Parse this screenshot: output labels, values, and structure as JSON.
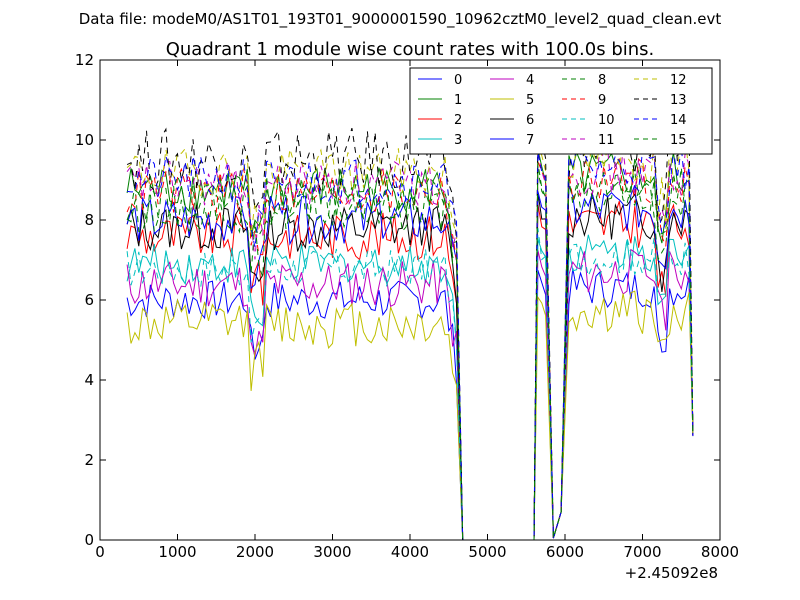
{
  "page_title": "Data file: modeM0/AS1T01_193T01_9000001590_10962cztM0_level2_quad_clean.evt",
  "chart_data": {
    "type": "line",
    "title": "Quadrant 1 module wise count rates with 100.0s bins.",
    "xlabel": "",
    "ylabel": "",
    "x_offset_label": "+2.45092e8",
    "xlim": [
      0,
      8000
    ],
    "ylim": [
      0,
      12
    ],
    "xticks": [
      0,
      1000,
      2000,
      3000,
      4000,
      5000,
      6000,
      7000,
      8000
    ],
    "yticks": [
      0,
      2,
      4,
      6,
      8,
      10,
      12
    ],
    "grid": false,
    "legend_position": "top-right",
    "legend_columns": 4,
    "series": [
      {
        "name": "0",
        "color": "#0000ff",
        "dash": "solid",
        "base": 6.0,
        "amp": 0.25
      },
      {
        "name": "1",
        "color": "#008000",
        "dash": "solid",
        "base": 8.8,
        "amp": 0.3
      },
      {
        "name": "2",
        "color": "#ff0000",
        "dash": "solid",
        "base": 7.6,
        "amp": 0.3
      },
      {
        "name": "3",
        "color": "#00bfbf",
        "dash": "solid",
        "base": 6.9,
        "amp": 0.25
      },
      {
        "name": "4",
        "color": "#bf00bf",
        "dash": "solid",
        "base": 6.4,
        "amp": 0.3
      },
      {
        "name": "5",
        "color": "#bfbf00",
        "dash": "solid",
        "base": 5.4,
        "amp": 0.3
      },
      {
        "name": "6",
        "color": "#000000",
        "dash": "solid",
        "base": 7.8,
        "amp": 0.3
      },
      {
        "name": "7",
        "color": "#0000ff",
        "dash": "solid",
        "base": 8.0,
        "amp": 0.3
      },
      {
        "name": "8",
        "color": "#008000",
        "dash": "dashed",
        "base": 8.3,
        "amp": 0.3
      },
      {
        "name": "9",
        "color": "#ff0000",
        "dash": "dashed",
        "base": 8.7,
        "amp": 0.3
      },
      {
        "name": "10",
        "color": "#00bfbf",
        "dash": "dashed",
        "base": 6.8,
        "amp": 0.25
      },
      {
        "name": "11",
        "color": "#bf00bf",
        "dash": "dashed",
        "base": 8.9,
        "amp": 0.3
      },
      {
        "name": "12",
        "color": "#bfbf00",
        "dash": "dashed",
        "base": 9.2,
        "amp": 0.3
      },
      {
        "name": "13",
        "color": "#000000",
        "dash": "dashed",
        "base": 9.5,
        "amp": 0.4
      },
      {
        "name": "14",
        "color": "#0000ff",
        "dash": "dashed",
        "base": 9.0,
        "amp": 0.3
      },
      {
        "name": "15",
        "color": "#008000",
        "dash": "dashed",
        "base": 8.5,
        "amp": 0.3
      }
    ],
    "segments_note": "Active ~350-4600 with dip near 2000; drop to 0 from ~4680-5600; spike ~5650-5800; active again ~5950-7650",
    "active_ranges": [
      [
        350,
        4600
      ],
      [
        5650,
        5780
      ],
      [
        5950,
        7650
      ]
    ],
    "dip_x": 2000,
    "zero_after": 4680
  }
}
